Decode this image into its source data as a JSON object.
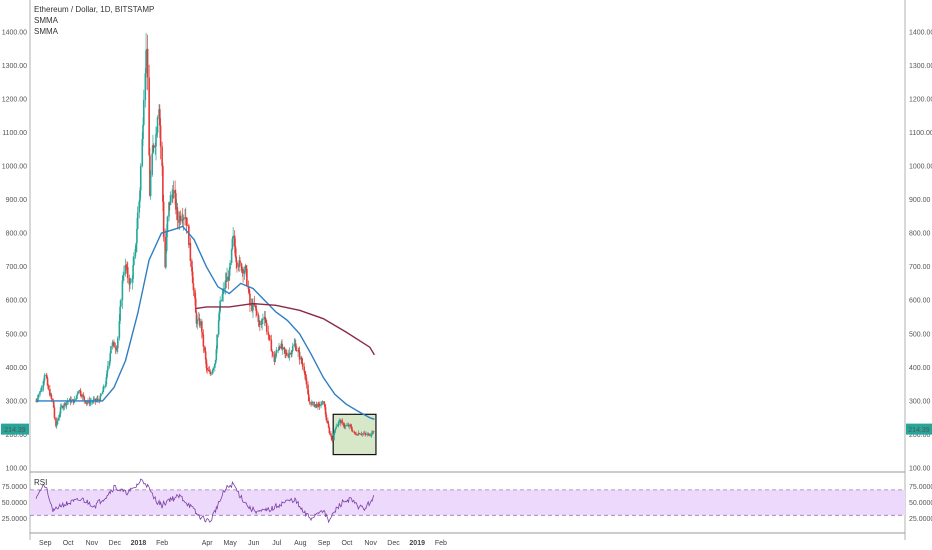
{
  "header": {
    "title": "Ethereum / Dollar, 1D, BITSTAMP",
    "indicators": [
      "SMMA",
      "SMMA"
    ]
  },
  "rsi_label": "RSI",
  "colors": {
    "up": "#26a69a",
    "down": "#e53935",
    "smma_fast": "#2f7ec3",
    "smma_slow": "#8b2a45",
    "rsi_line": "#7b3fa6",
    "rsi_band": "#ecd9fb",
    "highlight_fill": "#d6e8c8",
    "price_tag": "#26a69a"
  },
  "chart_data": [
    {
      "type": "candlestick",
      "title": "Ethereum / Dollar, 1D, BITSTAMP",
      "ylim": [
        100,
        1450
      ],
      "y_ticks": [
        "1400.00",
        "1300.00",
        "1200.00",
        "1100.00",
        "1000.00",
        "900.00",
        "800.00",
        "700.00",
        "600.00",
        "500.00",
        "400.00",
        "300.00",
        "200.00",
        "100.00"
      ],
      "x_labels": [
        "Sep",
        "Oct",
        "Nov",
        "Dec",
        "2018",
        "Feb",
        "Apr",
        "May",
        "Jun",
        "Jul",
        "Aug",
        "Sep",
        "Oct",
        "Nov",
        "Dec",
        "2019",
        "Feb"
      ],
      "last_price_label": "214.39",
      "last_price": 214.39,
      "price_path": [
        [
          "2017-08-20",
          300
        ],
        [
          "2017-08-28",
          340
        ],
        [
          "2017-09-01",
          385
        ],
        [
          "2017-09-06",
          330
        ],
        [
          "2017-09-12",
          290
        ],
        [
          "2017-09-15",
          220
        ],
        [
          "2017-09-22",
          280
        ],
        [
          "2017-10-01",
          300
        ],
        [
          "2017-10-10",
          300
        ],
        [
          "2017-10-15",
          335
        ],
        [
          "2017-10-25",
          295
        ],
        [
          "2017-11-05",
          300
        ],
        [
          "2017-11-12",
          305
        ],
        [
          "2017-11-20",
          360
        ],
        [
          "2017-11-27",
          470
        ],
        [
          "2017-12-05",
          460
        ],
        [
          "2017-12-12",
          680
        ],
        [
          "2017-12-16",
          700
        ],
        [
          "2017-12-22",
          640
        ],
        [
          "2017-12-28",
          740
        ],
        [
          "2018-01-04",
          950
        ],
        [
          "2018-01-10",
          1300
        ],
        [
          "2018-01-13",
          1380
        ],
        [
          "2018-01-16",
          900
        ],
        [
          "2018-01-20",
          1050
        ],
        [
          "2018-01-25",
          1100
        ],
        [
          "2018-01-28",
          1200
        ],
        [
          "2018-02-01",
          1000
        ],
        [
          "2018-02-05",
          700
        ],
        [
          "2018-02-10",
          880
        ],
        [
          "2018-02-16",
          930
        ],
        [
          "2018-02-22",
          840
        ],
        [
          "2018-02-28",
          860
        ],
        [
          "2018-03-05",
          850
        ],
        [
          "2018-03-12",
          700
        ],
        [
          "2018-03-18",
          540
        ],
        [
          "2018-03-24",
          530
        ],
        [
          "2018-04-01",
          390
        ],
        [
          "2018-04-06",
          380
        ],
        [
          "2018-04-12",
          420
        ],
        [
          "2018-04-18",
          580
        ],
        [
          "2018-04-25",
          650
        ],
        [
          "2018-05-01",
          680
        ],
        [
          "2018-05-05",
          790
        ],
        [
          "2018-05-10",
          720
        ],
        [
          "2018-05-15",
          700
        ],
        [
          "2018-05-22",
          690
        ],
        [
          "2018-05-28",
          580
        ],
        [
          "2018-06-03",
          580
        ],
        [
          "2018-06-10",
          520
        ],
        [
          "2018-06-15",
          560
        ],
        [
          "2018-06-20",
          500
        ],
        [
          "2018-06-28",
          420
        ],
        [
          "2018-07-05",
          470
        ],
        [
          "2018-07-12",
          440
        ],
        [
          "2018-07-18",
          440
        ],
        [
          "2018-07-25",
          470
        ],
        [
          "2018-08-01",
          430
        ],
        [
          "2018-08-08",
          380
        ],
        [
          "2018-08-12",
          300
        ],
        [
          "2018-08-18",
          290
        ],
        [
          "2018-08-25",
          285
        ],
        [
          "2018-09-01",
          295
        ],
        [
          "2018-09-06",
          230
        ],
        [
          "2018-09-12",
          180
        ],
        [
          "2018-09-16",
          220
        ],
        [
          "2018-09-22",
          240
        ],
        [
          "2018-09-28",
          225
        ],
        [
          "2018-10-05",
          225
        ],
        [
          "2018-10-12",
          200
        ],
        [
          "2018-10-18",
          205
        ],
        [
          "2018-10-25",
          200
        ],
        [
          "2018-11-01",
          200
        ],
        [
          "2018-11-06",
          214.39
        ]
      ],
      "smma_fast": [
        [
          "2017-08-20",
          300
        ],
        [
          "2017-09-20",
          300
        ],
        [
          "2017-10-20",
          300
        ],
        [
          "2017-11-15",
          300
        ],
        [
          "2017-11-30",
          340
        ],
        [
          "2017-12-15",
          420
        ],
        [
          "2017-12-31",
          560
        ],
        [
          "2018-01-15",
          720
        ],
        [
          "2018-01-31",
          800
        ],
        [
          "2018-02-15",
          810
        ],
        [
          "2018-02-28",
          820
        ],
        [
          "2018-03-15",
          780
        ],
        [
          "2018-03-31",
          700
        ],
        [
          "2018-04-15",
          640
        ],
        [
          "2018-04-30",
          620
        ],
        [
          "2018-05-15",
          650
        ],
        [
          "2018-05-31",
          635
        ],
        [
          "2018-06-15",
          600
        ],
        [
          "2018-06-30",
          565
        ],
        [
          "2018-07-15",
          540
        ],
        [
          "2018-07-31",
          500
        ],
        [
          "2018-08-15",
          440
        ],
        [
          "2018-08-31",
          370
        ],
        [
          "2018-09-15",
          320
        ],
        [
          "2018-09-30",
          290
        ],
        [
          "2018-10-15",
          270
        ],
        [
          "2018-10-31",
          250
        ],
        [
          "2018-11-06",
          245
        ]
      ],
      "smma_slow": [
        [
          "2018-03-17",
          575
        ],
        [
          "2018-03-31",
          580
        ],
        [
          "2018-04-30",
          580
        ],
        [
          "2018-05-31",
          590
        ],
        [
          "2018-06-30",
          585
        ],
        [
          "2018-07-31",
          570
        ],
        [
          "2018-08-31",
          545
        ],
        [
          "2018-09-30",
          505
        ],
        [
          "2018-10-31",
          460
        ],
        [
          "2018-11-06",
          437
        ]
      ],
      "highlight_range": {
        "x": [
          "2018-09-13",
          "2018-11-08"
        ],
        "y": [
          140,
          260
        ]
      }
    },
    {
      "type": "line",
      "title": "RSI",
      "ylim": [
        10,
        95
      ],
      "y_ticks": [
        "75.0000",
        "50.0000",
        "25.0000"
      ],
      "band": [
        30,
        70
      ],
      "x": [
        "2017-08-20",
        "2017-09-01",
        "2017-09-12",
        "2017-09-20",
        "2017-10-05",
        "2017-10-20",
        "2017-11-05",
        "2017-11-20",
        "2017-12-01",
        "2017-12-15",
        "2017-12-25",
        "2018-01-05",
        "2018-01-12",
        "2018-01-20",
        "2018-02-01",
        "2018-02-10",
        "2018-02-25",
        "2018-03-10",
        "2018-03-20",
        "2018-04-05",
        "2018-04-15",
        "2018-04-25",
        "2018-05-05",
        "2018-05-15",
        "2018-05-28",
        "2018-06-10",
        "2018-06-25",
        "2018-07-10",
        "2018-07-25",
        "2018-08-05",
        "2018-08-15",
        "2018-08-30",
        "2018-09-08",
        "2018-09-15",
        "2018-09-25",
        "2018-10-05",
        "2018-10-15",
        "2018-10-25",
        "2018-11-06"
      ],
      "values": [
        60,
        78,
        35,
        45,
        50,
        55,
        45,
        60,
        75,
        65,
        70,
        85,
        80,
        60,
        45,
        55,
        60,
        45,
        30,
        20,
        45,
        70,
        80,
        60,
        40,
        35,
        40,
        50,
        55,
        35,
        25,
        40,
        20,
        35,
        50,
        55,
        45,
        40,
        60
      ]
    }
  ]
}
